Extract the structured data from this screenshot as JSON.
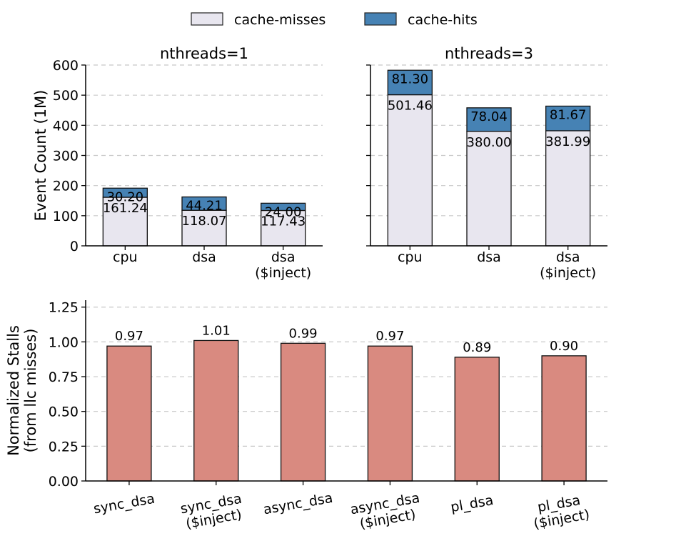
{
  "legend": {
    "items": [
      {
        "label": "cache-misses",
        "color": "#e8e6ef"
      },
      {
        "label": "cache-hits",
        "color": "#4682b4"
      }
    ]
  },
  "colors": {
    "misses": "#e8e6ef",
    "hits": "#4682b4",
    "stalls": "#d98a80",
    "grid": "#c8c8c8",
    "axis": "#000000"
  },
  "chart_data": [
    {
      "type": "bar",
      "stacked": true,
      "title": "nthreads=1",
      "ylabel": "Event Count (1M)",
      "ylim": [
        0,
        600
      ],
      "yticks": [
        0,
        100,
        200,
        300,
        400,
        500,
        600
      ],
      "categories": [
        "cpu",
        "dsa",
        "dsa\n($inject)"
      ],
      "series": [
        {
          "name": "cache-misses",
          "values": [
            161.24,
            118.07,
            117.43
          ]
        },
        {
          "name": "cache-hits",
          "values": [
            30.2,
            44.21,
            24.0
          ]
        }
      ],
      "grid": true
    },
    {
      "type": "bar",
      "stacked": true,
      "title": "nthreads=3",
      "ylabel": "",
      "ylim": [
        0,
        600
      ],
      "yticks": [
        0,
        100,
        200,
        300,
        400,
        500,
        600
      ],
      "categories": [
        "cpu",
        "dsa",
        "dsa\n($inject)"
      ],
      "series": [
        {
          "name": "cache-misses",
          "values": [
            501.46,
            380.0,
            381.99
          ]
        },
        {
          "name": "cache-hits",
          "values": [
            81.3,
            78.04,
            81.67
          ]
        }
      ],
      "grid": true
    },
    {
      "type": "bar",
      "title": "",
      "ylabel": "Normalized Stalls\n(from llc misses)",
      "ylim": [
        0,
        1.3
      ],
      "yticks": [
        0.0,
        0.25,
        0.5,
        0.75,
        1.0,
        1.25
      ],
      "categories": [
        "sync_dsa",
        "sync_dsa\n($inject)",
        "async_dsa",
        "async_dsa\n($inject)",
        "pl_dsa",
        "pl_dsa\n($inject)"
      ],
      "values": [
        0.97,
        1.01,
        0.99,
        0.97,
        0.89,
        0.9
      ],
      "grid": true
    }
  ]
}
